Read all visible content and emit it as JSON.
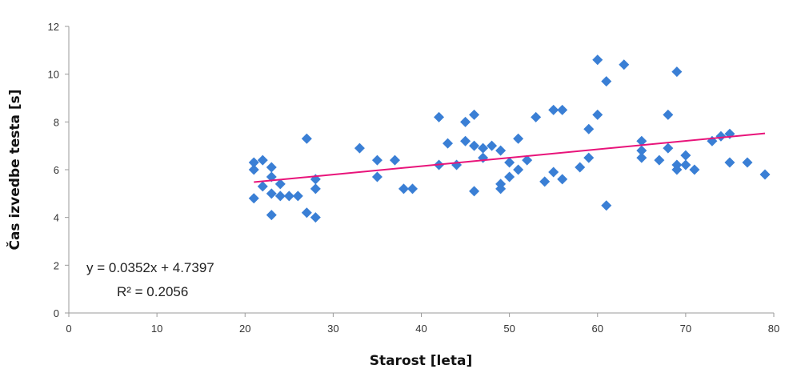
{
  "chart_data": {
    "type": "scatter",
    "xlabel": "Starost [leta]",
    "ylabel": "Čas izvedbe testa [s]",
    "xlim": [
      0,
      80
    ],
    "ylim": [
      0,
      12
    ],
    "x_ticks": [
      "0",
      "10",
      "20",
      "30",
      "40",
      "50",
      "60",
      "70",
      "80"
    ],
    "y_ticks": [
      "0",
      "2",
      "4",
      "6",
      "8",
      "10",
      "12"
    ],
    "grid": false,
    "legend": "none",
    "marker_color": "#3a7fd5",
    "trendline_color": "#e8147a",
    "trendline": {
      "slope": 0.0352,
      "intercept": 4.7397,
      "x_start": 21,
      "x_end": 79
    },
    "annotations": {
      "equation": "y = 0.0352x + 4.7397",
      "r_squared": "R² = 0.2056"
    },
    "points": [
      [
        21,
        6.3
      ],
      [
        21,
        6.0
      ],
      [
        21,
        4.8
      ],
      [
        22,
        6.4
      ],
      [
        22,
        5.3
      ],
      [
        23,
        6.1
      ],
      [
        23,
        5.7
      ],
      [
        23,
        5.0
      ],
      [
        23,
        4.1
      ],
      [
        24,
        5.4
      ],
      [
        24,
        4.9
      ],
      [
        25,
        4.9
      ],
      [
        26,
        4.9
      ],
      [
        27,
        7.3
      ],
      [
        27,
        4.2
      ],
      [
        28,
        5.6
      ],
      [
        28,
        5.2
      ],
      [
        28,
        4.0
      ],
      [
        33,
        6.9
      ],
      [
        35,
        6.4
      ],
      [
        35,
        5.7
      ],
      [
        37,
        6.4
      ],
      [
        38,
        5.2
      ],
      [
        39,
        5.2
      ],
      [
        42,
        8.2
      ],
      [
        42,
        6.2
      ],
      [
        43,
        7.1
      ],
      [
        44,
        6.2
      ],
      [
        45,
        8.0
      ],
      [
        45,
        7.2
      ],
      [
        46,
        8.3
      ],
      [
        46,
        7.0
      ],
      [
        46,
        5.1
      ],
      [
        47,
        6.9
      ],
      [
        47,
        6.5
      ],
      [
        48,
        7.0
      ],
      [
        49,
        6.8
      ],
      [
        49,
        5.4
      ],
      [
        49,
        5.2
      ],
      [
        50,
        6.3
      ],
      [
        50,
        5.7
      ],
      [
        51,
        7.3
      ],
      [
        51,
        6.0
      ],
      [
        52,
        6.4
      ],
      [
        53,
        8.2
      ],
      [
        54,
        5.5
      ],
      [
        55,
        8.5
      ],
      [
        55,
        5.9
      ],
      [
        56,
        8.5
      ],
      [
        56,
        5.6
      ],
      [
        58,
        6.1
      ],
      [
        59,
        7.7
      ],
      [
        59,
        6.5
      ],
      [
        60,
        10.6
      ],
      [
        60,
        8.3
      ],
      [
        61,
        9.7
      ],
      [
        61,
        4.5
      ],
      [
        63,
        10.4
      ],
      [
        65,
        7.2
      ],
      [
        65,
        6.8
      ],
      [
        65,
        6.5
      ],
      [
        67,
        6.4
      ],
      [
        68,
        8.3
      ],
      [
        68,
        6.9
      ],
      [
        69,
        10.1
      ],
      [
        69,
        6.2
      ],
      [
        69,
        6.0
      ],
      [
        70,
        6.6
      ],
      [
        70,
        6.2
      ],
      [
        71,
        6.0
      ],
      [
        73,
        7.2
      ],
      [
        74,
        7.4
      ],
      [
        75,
        7.5
      ],
      [
        75,
        6.3
      ],
      [
        77,
        6.3
      ],
      [
        79,
        5.8
      ]
    ]
  }
}
